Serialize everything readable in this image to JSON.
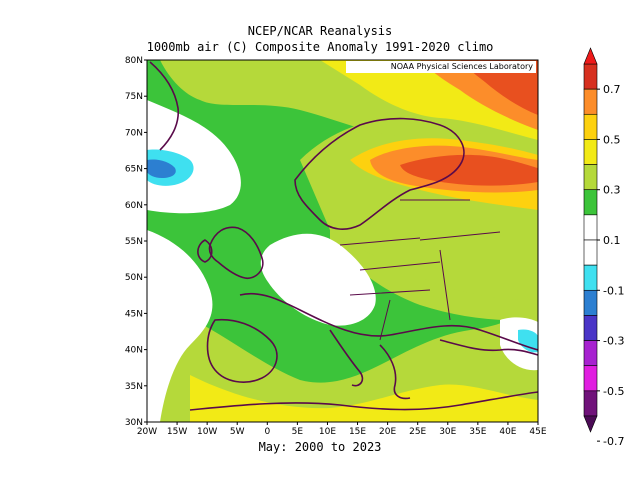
{
  "header": {
    "title": "NCEP/NCAR Reanalysis",
    "subtitle": "1000mb air (C) Composite Anomaly 1991-2020 climo"
  },
  "credit": "NOAA Physical Sciences Laboratory",
  "footer": "May: 2000 to 2023",
  "map": {
    "lat_ticks": [
      "80N",
      "75N",
      "70N",
      "65N",
      "60N",
      "55N",
      "50N",
      "45N",
      "40N",
      "35N",
      "30N"
    ],
    "lon_ticks": [
      "20W",
      "15W",
      "10W",
      "5W",
      "0",
      "5E",
      "10E",
      "15E",
      "20E",
      "25E",
      "30E",
      "35E",
      "40E",
      "45E"
    ]
  },
  "colorbar": {
    "labels": [
      "0.7",
      "0.5",
      "0.3",
      "0.1",
      "-0.1",
      "-0.3",
      "-0.5",
      "-0.7"
    ],
    "colors": [
      "#d7301f",
      "#fc8d2a",
      "#fdd10f",
      "#f2ea16",
      "#b5d93a",
      "#3cc43a",
      "#ffffff",
      "#ffffff",
      "#3fe0f0",
      "#2c7fd1",
      "#4a35c7",
      "#a722d0",
      "#e01ee0",
      "#70127a"
    ],
    "top_color": "#ee1a1a",
    "bottom_color": "#4b0a55"
  }
}
